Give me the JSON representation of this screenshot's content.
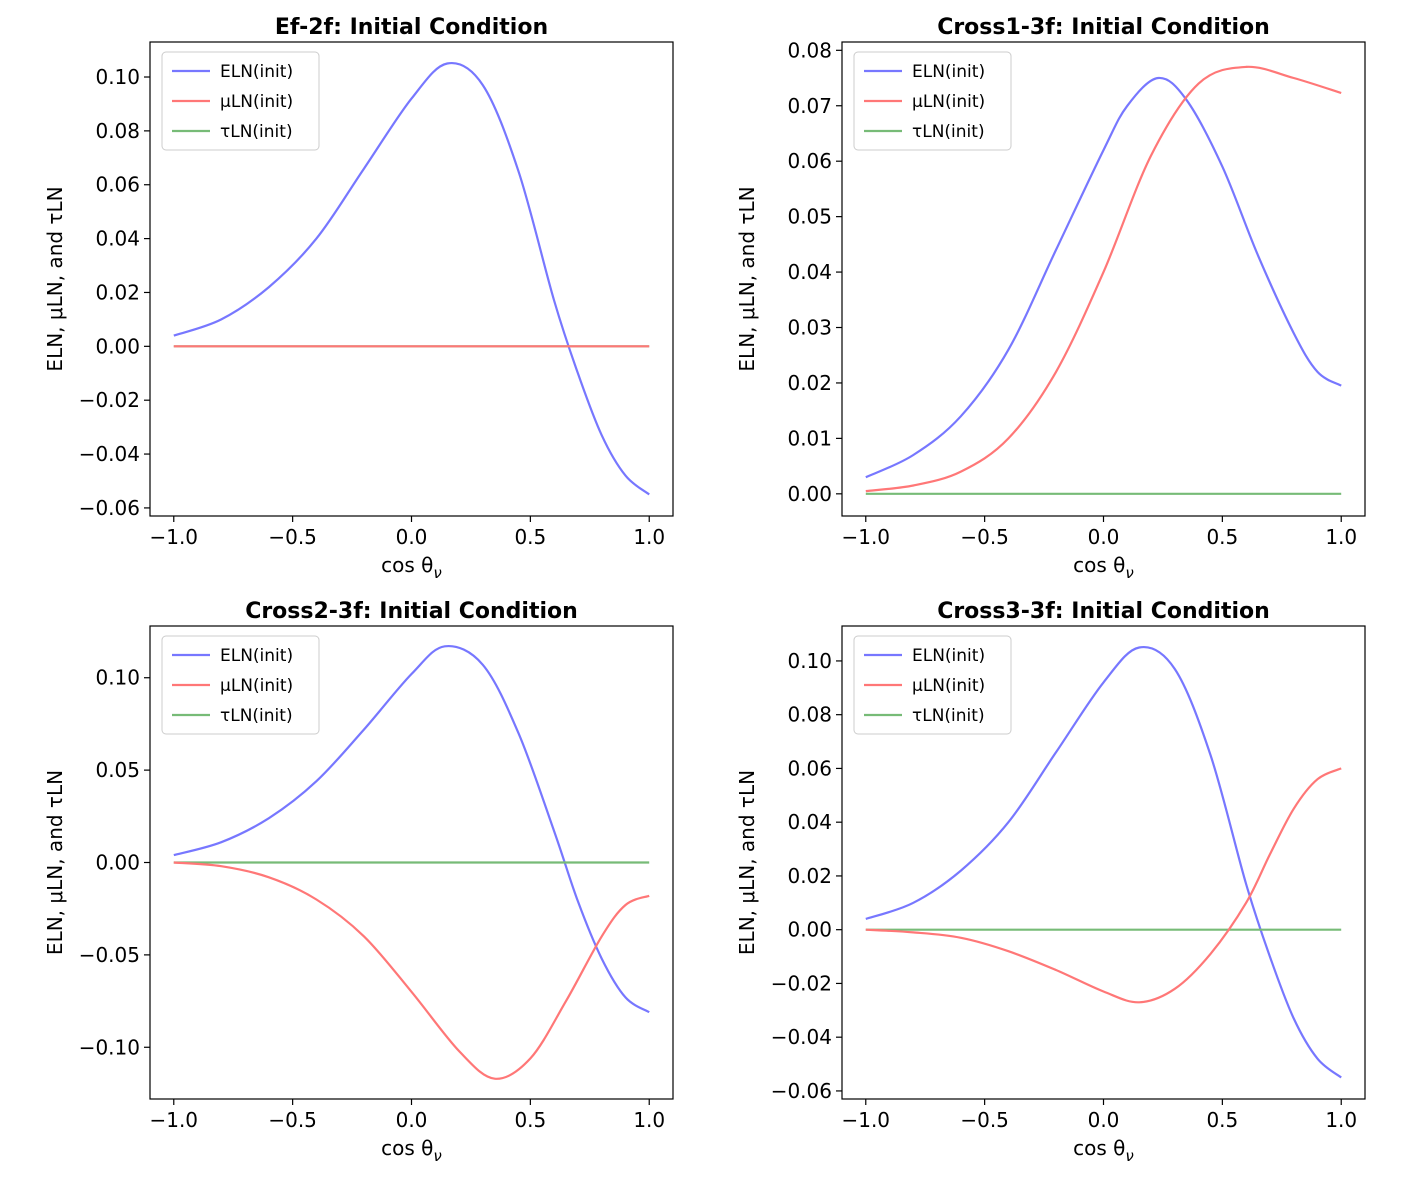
{
  "chart_data": [
    {
      "type": "line",
      "title": "Ef-2f: Initial Condition",
      "xlabel": "cos θ_ν",
      "ylabel": "ELN, μLN, and τLN",
      "xlim": [
        -1.1,
        1.1
      ],
      "ylim": [
        -0.063,
        0.113
      ],
      "xticks": [
        -1.0,
        -0.5,
        0.0,
        0.5,
        1.0
      ],
      "xtick_labels": [
        "−1.0",
        "−0.5",
        "0.0",
        "0.5",
        "1.0"
      ],
      "yticks": [
        -0.06,
        -0.04,
        -0.02,
        0.0,
        0.02,
        0.04,
        0.06,
        0.08,
        0.1
      ],
      "ytick_labels": [
        "−0.06",
        "−0.04",
        "−0.02",
        "0.00",
        "0.02",
        "0.04",
        "0.06",
        "0.08",
        "0.10"
      ],
      "legend_position": "top-left",
      "series": [
        {
          "name": "ELN(init)",
          "color": "#7777ff",
          "x": [
            -1.0,
            -0.8,
            -0.6,
            -0.4,
            -0.2,
            0.0,
            0.15,
            0.3,
            0.45,
            0.6,
            0.7,
            0.8,
            0.9,
            1.0
          ],
          "y": [
            0.004,
            0.01,
            0.022,
            0.04,
            0.066,
            0.092,
            0.105,
            0.097,
            0.065,
            0.017,
            -0.01,
            -0.033,
            -0.048,
            -0.055
          ]
        },
        {
          "name": "μLN(init)",
          "color": "#ff7777",
          "x": [
            -1.0,
            1.0
          ],
          "y": [
            0.0,
            0.0
          ]
        },
        {
          "name": "τLN(init)",
          "color": "#77bb77",
          "x": [
            -1.0,
            1.0
          ],
          "y": [
            0.0,
            0.0
          ]
        }
      ]
    },
    {
      "type": "line",
      "title": "Cross1-3f: Initial Condition",
      "xlabel": "cos θ_ν",
      "ylabel": "ELN, μLN, and τLN",
      "xlim": [
        -1.1,
        1.1
      ],
      "ylim": [
        -0.004,
        0.0815
      ],
      "xticks": [
        -1.0,
        -0.5,
        0.0,
        0.5,
        1.0
      ],
      "xtick_labels": [
        "−1.0",
        "−0.5",
        "0.0",
        "0.5",
        "1.0"
      ],
      "yticks": [
        0.0,
        0.01,
        0.02,
        0.03,
        0.04,
        0.05,
        0.06,
        0.07,
        0.08
      ],
      "ytick_labels": [
        "0.00",
        "0.01",
        "0.02",
        "0.03",
        "0.04",
        "0.05",
        "0.06",
        "0.07",
        "0.08"
      ],
      "legend_position": "top-left",
      "series": [
        {
          "name": "ELN(init)",
          "color": "#7777ff",
          "x": [
            -1.0,
            -0.8,
            -0.6,
            -0.4,
            -0.2,
            0.0,
            0.1,
            0.23,
            0.35,
            0.5,
            0.65,
            0.8,
            0.9,
            1.0
          ],
          "y": [
            0.003,
            0.007,
            0.014,
            0.026,
            0.044,
            0.062,
            0.07,
            0.075,
            0.071,
            0.059,
            0.043,
            0.029,
            0.022,
            0.0195
          ]
        },
        {
          "name": "μLN(init)",
          "color": "#ff7777",
          "x": [
            -1.0,
            -0.8,
            -0.6,
            -0.4,
            -0.2,
            0.0,
            0.2,
            0.4,
            0.6,
            0.8,
            1.0
          ],
          "y": [
            0.0005,
            0.0015,
            0.004,
            0.01,
            0.022,
            0.04,
            0.061,
            0.074,
            0.077,
            0.075,
            0.0723
          ]
        },
        {
          "name": "τLN(init)",
          "color": "#77bb77",
          "x": [
            -1.0,
            1.0
          ],
          "y": [
            0.0,
            0.0
          ]
        }
      ]
    },
    {
      "type": "line",
      "title": "Cross2-3f: Initial Condition",
      "xlabel": "cos θ_ν",
      "ylabel": "ELN, μLN, and τLN",
      "xlim": [
        -1.1,
        1.1
      ],
      "ylim": [
        -0.128,
        0.128
      ],
      "xticks": [
        -1.0,
        -0.5,
        0.0,
        0.5,
        1.0
      ],
      "xtick_labels": [
        "−1.0",
        "−0.5",
        "0.0",
        "0.5",
        "1.0"
      ],
      "yticks": [
        -0.1,
        -0.05,
        0.0,
        0.05,
        0.1
      ],
      "ytick_labels": [
        "−0.10",
        "−0.05",
        "0.00",
        "0.05",
        "0.10"
      ],
      "legend_position": "top-left",
      "series": [
        {
          "name": "ELN(init)",
          "color": "#7777ff",
          "x": [
            -1.0,
            -0.8,
            -0.6,
            -0.4,
            -0.2,
            0.0,
            0.14,
            0.3,
            0.45,
            0.6,
            0.7,
            0.8,
            0.9,
            1.0
          ],
          "y": [
            0.004,
            0.011,
            0.024,
            0.044,
            0.072,
            0.102,
            0.117,
            0.107,
            0.07,
            0.017,
            -0.021,
            -0.052,
            -0.073,
            -0.081
          ]
        },
        {
          "name": "μLN(init)",
          "color": "#ff7777",
          "x": [
            -1.0,
            -0.8,
            -0.6,
            -0.4,
            -0.2,
            0.0,
            0.2,
            0.35,
            0.5,
            0.65,
            0.8,
            0.9,
            1.0
          ],
          "y": [
            0.0,
            -0.002,
            -0.008,
            -0.02,
            -0.04,
            -0.07,
            -0.102,
            -0.117,
            -0.106,
            -0.075,
            -0.04,
            -0.023,
            -0.018
          ]
        },
        {
          "name": "τLN(init)",
          "color": "#77bb77",
          "x": [
            -1.0,
            1.0
          ],
          "y": [
            0.0,
            0.0
          ]
        }
      ]
    },
    {
      "type": "line",
      "title": "Cross3-3f: Initial Condition",
      "xlabel": "cos θ_ν",
      "ylabel": "ELN, μLN, and τLN",
      "xlim": [
        -1.1,
        1.1
      ],
      "ylim": [
        -0.063,
        0.113
      ],
      "xticks": [
        -1.0,
        -0.5,
        0.0,
        0.5,
        1.0
      ],
      "xtick_labels": [
        "−1.0",
        "−0.5",
        "0.0",
        "0.5",
        "1.0"
      ],
      "yticks": [
        -0.06,
        -0.04,
        -0.02,
        0.0,
        0.02,
        0.04,
        0.06,
        0.08,
        0.1
      ],
      "ytick_labels": [
        "−0.06",
        "−0.04",
        "−0.02",
        "0.00",
        "0.02",
        "0.04",
        "0.06",
        "0.08",
        "0.10"
      ],
      "legend_position": "top-left",
      "series": [
        {
          "name": "ELN(init)",
          "color": "#7777ff",
          "x": [
            -1.0,
            -0.8,
            -0.6,
            -0.4,
            -0.2,
            0.0,
            0.15,
            0.3,
            0.45,
            0.6,
            0.7,
            0.8,
            0.9,
            1.0
          ],
          "y": [
            0.004,
            0.01,
            0.022,
            0.04,
            0.066,
            0.092,
            0.105,
            0.097,
            0.065,
            0.017,
            -0.01,
            -0.033,
            -0.048,
            -0.055
          ]
        },
        {
          "name": "μLN(init)",
          "color": "#ff7777",
          "x": [
            -1.0,
            -0.8,
            -0.6,
            -0.4,
            -0.2,
            0.0,
            0.15,
            0.3,
            0.45,
            0.6,
            0.7,
            0.8,
            0.9,
            1.0
          ],
          "y": [
            0.0,
            -0.001,
            -0.003,
            -0.008,
            -0.015,
            -0.023,
            -0.027,
            -0.022,
            -0.009,
            0.01,
            0.028,
            0.045,
            0.056,
            0.06
          ]
        },
        {
          "name": "τLN(init)",
          "color": "#77bb77",
          "x": [
            -1.0,
            1.0
          ],
          "y": [
            0.0,
            0.0
          ]
        }
      ]
    }
  ]
}
